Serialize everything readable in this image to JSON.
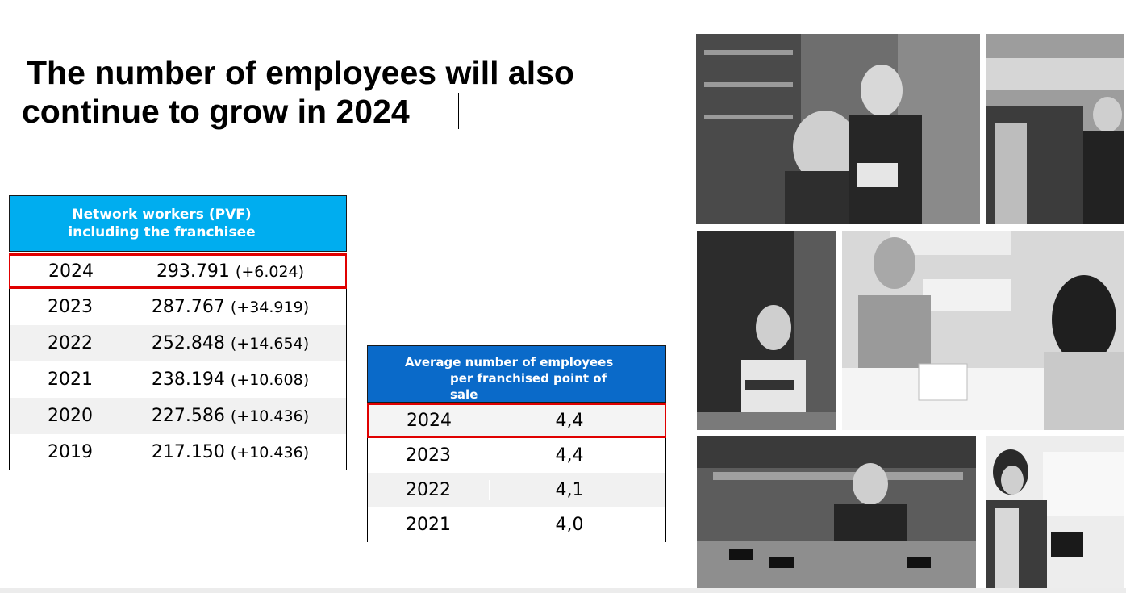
{
  "title": {
    "line1": "The number of employees will also",
    "line2": "continue to grow in 2024"
  },
  "workers_table": {
    "header_line1": "Network workers (PVF)",
    "header_line2": "including the franchisee",
    "rows": [
      {
        "year": "2024",
        "value": "293.791",
        "delta": "(+6.024)"
      },
      {
        "year": "2023",
        "value": "287.767",
        "delta": "(+34.919)"
      },
      {
        "year": "2022",
        "value": "252.848",
        "delta": "(+14.654)"
      },
      {
        "year": "2021",
        "value": "238.194",
        "delta": "(+10.608)"
      },
      {
        "year": "2020",
        "value": "227.586",
        "delta": "(+10.436)"
      },
      {
        "year": "2019",
        "value": "217.150",
        "delta": "(+10.436)"
      }
    ]
  },
  "average_table": {
    "header_line1": "Average number of employees",
    "header_line2": "per franchised point of",
    "header_line3": "sale",
    "rows": [
      {
        "year": "2024",
        "value": "4,4"
      },
      {
        "year": "2023",
        "value": "4,4"
      },
      {
        "year": "2022",
        "value": "4,1"
      },
      {
        "year": "2021",
        "value": "4,0"
      }
    ]
  },
  "colors": {
    "workers_header": "#00adef",
    "average_header": "#0a6ac9",
    "highlight": "#e00000"
  }
}
